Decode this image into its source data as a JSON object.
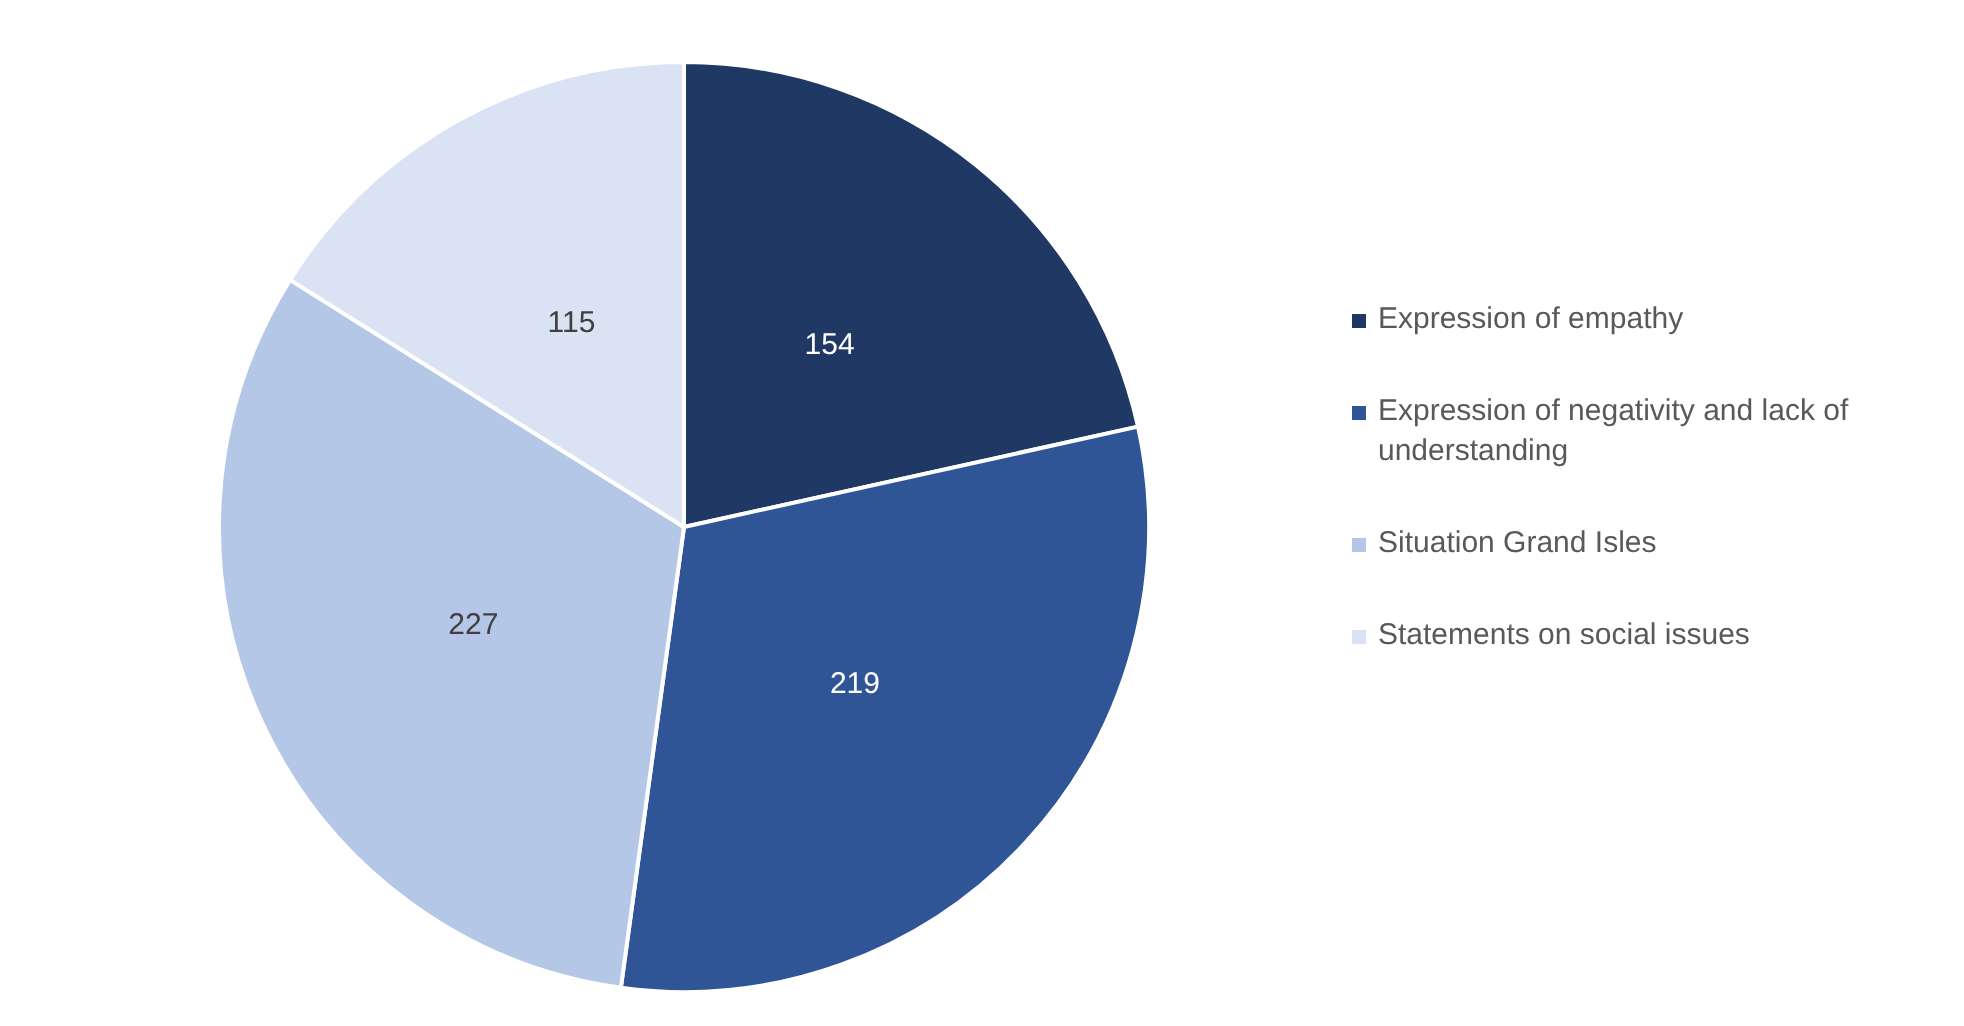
{
  "chart_data": {
    "type": "pie",
    "categories": [
      "Expression of empathy",
      "Expression of negativity and lack of understanding",
      "Situation Grand Isles",
      "Statements on social issues"
    ],
    "values": [
      154,
      219,
      227,
      115
    ],
    "colors": [
      "#1f3864",
      "#2f5597",
      "#b4c7e7",
      "#dae3f3"
    ],
    "data_labels": true,
    "legend": "right"
  }
}
